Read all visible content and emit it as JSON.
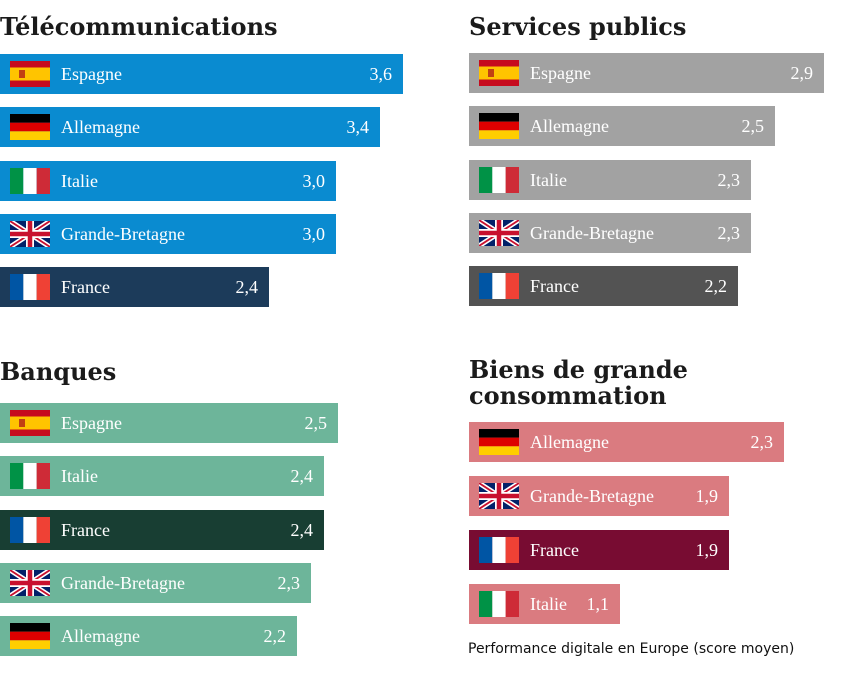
{
  "chart_data": [
    {
      "type": "bar",
      "title": "Télécommunications",
      "categories": [
        "Espagne",
        "Allemagne",
        "Italie",
        "Grande-Bretagne",
        "France"
      ],
      "values": [
        3.6,
        3.4,
        3.0,
        3.0,
        2.4
      ],
      "value_labels": [
        "3,6",
        "3,4",
        "3,0",
        "3,0",
        "2,4"
      ],
      "flags": [
        "es-flag-icon",
        "de-flag-icon",
        "it-flag-icon",
        "gb-flag-icon",
        "fr-flag-icon"
      ],
      "color": "#0a8bd0",
      "highlight_color": "#1c3b5a",
      "highlight_category": "France"
    },
    {
      "type": "bar",
      "title": "Services publics",
      "categories": [
        "Espagne",
        "Allemagne",
        "Italie",
        "Grande-Bretagne",
        "France"
      ],
      "values": [
        2.9,
        2.5,
        2.3,
        2.3,
        2.2
      ],
      "value_labels": [
        "2,9",
        "2,5",
        "2,3",
        "2,3",
        "2,2"
      ],
      "flags": [
        "es-flag-icon",
        "de-flag-icon",
        "it-flag-icon",
        "gb-flag-icon",
        "fr-flag-icon"
      ],
      "color": "#a2a2a2",
      "highlight_color": "#535353",
      "highlight_category": "France"
    },
    {
      "type": "bar",
      "title": "Banques",
      "categories": [
        "Espagne",
        "Italie",
        "France",
        "Grande-Bretagne",
        "Allemagne"
      ],
      "values": [
        2.5,
        2.4,
        2.4,
        2.3,
        2.2
      ],
      "value_labels": [
        "2,5",
        "2,4",
        "2,4",
        "2,3",
        "2,2"
      ],
      "flags": [
        "es-flag-icon",
        "it-flag-icon",
        "fr-flag-icon",
        "gb-flag-icon",
        "de-flag-icon"
      ],
      "color": "#6db59a",
      "highlight_color": "#183e33",
      "highlight_category": "France"
    },
    {
      "type": "bar",
      "title": "Biens de grande\nconsommation",
      "categories": [
        "Allemagne",
        "Grande-Bretagne",
        "France",
        "Italie"
      ],
      "values": [
        2.3,
        1.9,
        1.9,
        1.1
      ],
      "value_labels": [
        "2,3",
        "1,9",
        "1,9",
        "1,1"
      ],
      "flags": [
        "de-flag-icon",
        "gb-flag-icon",
        "fr-flag-icon",
        "it-flag-icon"
      ],
      "color": "#da7b80",
      "highlight_color": "#780c32",
      "highlight_category": "France"
    }
  ],
  "caption": "Performance digitale en Europe (score moyen)"
}
